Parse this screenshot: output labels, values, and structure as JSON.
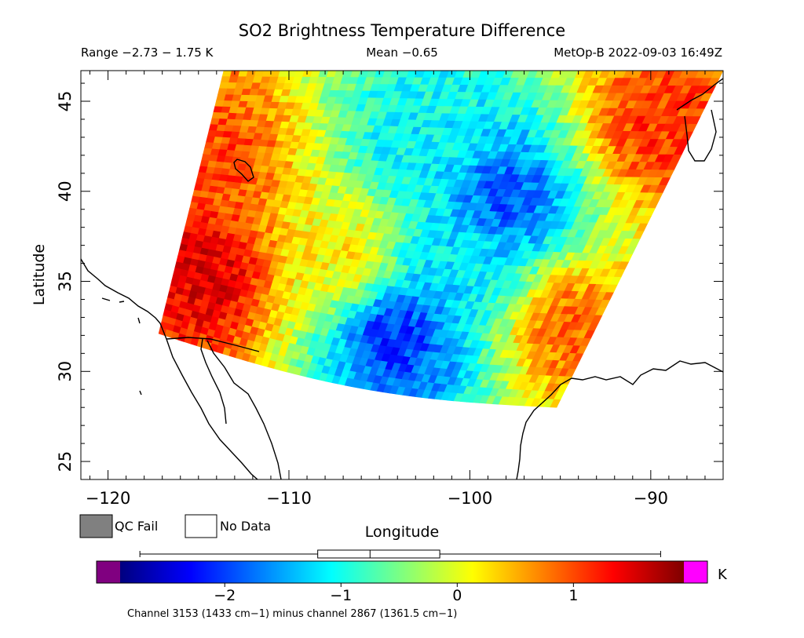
{
  "chart_data": {
    "type": "heatmap",
    "title": "SO2 Brightness Temperature Difference",
    "header": {
      "range": "Range −2.73 − 1.75 K",
      "mean": "Mean −0.65",
      "satellite_time": "MetOp-B 2022-09-03 16:49Z"
    },
    "xlabel": "Longitude",
    "ylabel": "Latitude",
    "xlim": [
      -121.5,
      -86
    ],
    "ylim": [
      24,
      46.7
    ],
    "xticks": [
      -120,
      -110,
      -100,
      -90
    ],
    "xtick_labels": [
      "−120",
      "−110",
      "−100",
      "−90"
    ],
    "yticks": [
      25,
      30,
      35,
      40,
      45
    ],
    "ytick_labels": [
      "25",
      "30",
      "35",
      "40",
      "45"
    ],
    "swath": {
      "corners_lonlat": [
        [
          -113.6,
          46.7
        ],
        [
          -86.0,
          46.7
        ],
        [
          -95.2,
          28.0
        ],
        [
          -117.2,
          32.1
        ]
      ],
      "value_range": [
        -2.73,
        1.75
      ],
      "mean": -0.65,
      "regions": [
        {
          "lon": -114.5,
          "lat": 35.5,
          "value": 1.5
        },
        {
          "lon": -114.0,
          "lat": 42.0,
          "value": 1.0
        },
        {
          "lon": -107.0,
          "lat": 36.5,
          "value": 0.2
        },
        {
          "lon": -103.0,
          "lat": 43.0,
          "value": -1.1
        },
        {
          "lon": -98.0,
          "lat": 39.5,
          "value": -1.9
        },
        {
          "lon": -104.0,
          "lat": 32.0,
          "value": -2.1
        },
        {
          "lon": -94.5,
          "lat": 32.5,
          "value": 0.9
        },
        {
          "lon": -89.5,
          "lat": 43.5,
          "value": 1.1
        },
        {
          "lon": -100.5,
          "lat": 36.0,
          "value": -1.2
        }
      ]
    },
    "legend": {
      "qc_fail_label": "QC Fail",
      "no_data_label": "No Data",
      "qc_fail_color": "#808080",
      "no_data_color": "#ffffff"
    },
    "colorbar": {
      "range": [
        -2.9,
        1.95
      ],
      "ticks": [
        -2,
        -1,
        0,
        1
      ],
      "tick_labels": [
        "−2",
        "−1",
        "0",
        "1"
      ],
      "unit": "K",
      "under_color": "#800080",
      "over_color": "#ff00ff",
      "boxplot": {
        "min": -2.73,
        "q1": -1.2,
        "median": -0.75,
        "q3": -0.15,
        "max": 1.75
      }
    },
    "footnote": "Channel 3153 (1433 cm−1) minus channel 2867 (1361.5 cm−1)"
  }
}
